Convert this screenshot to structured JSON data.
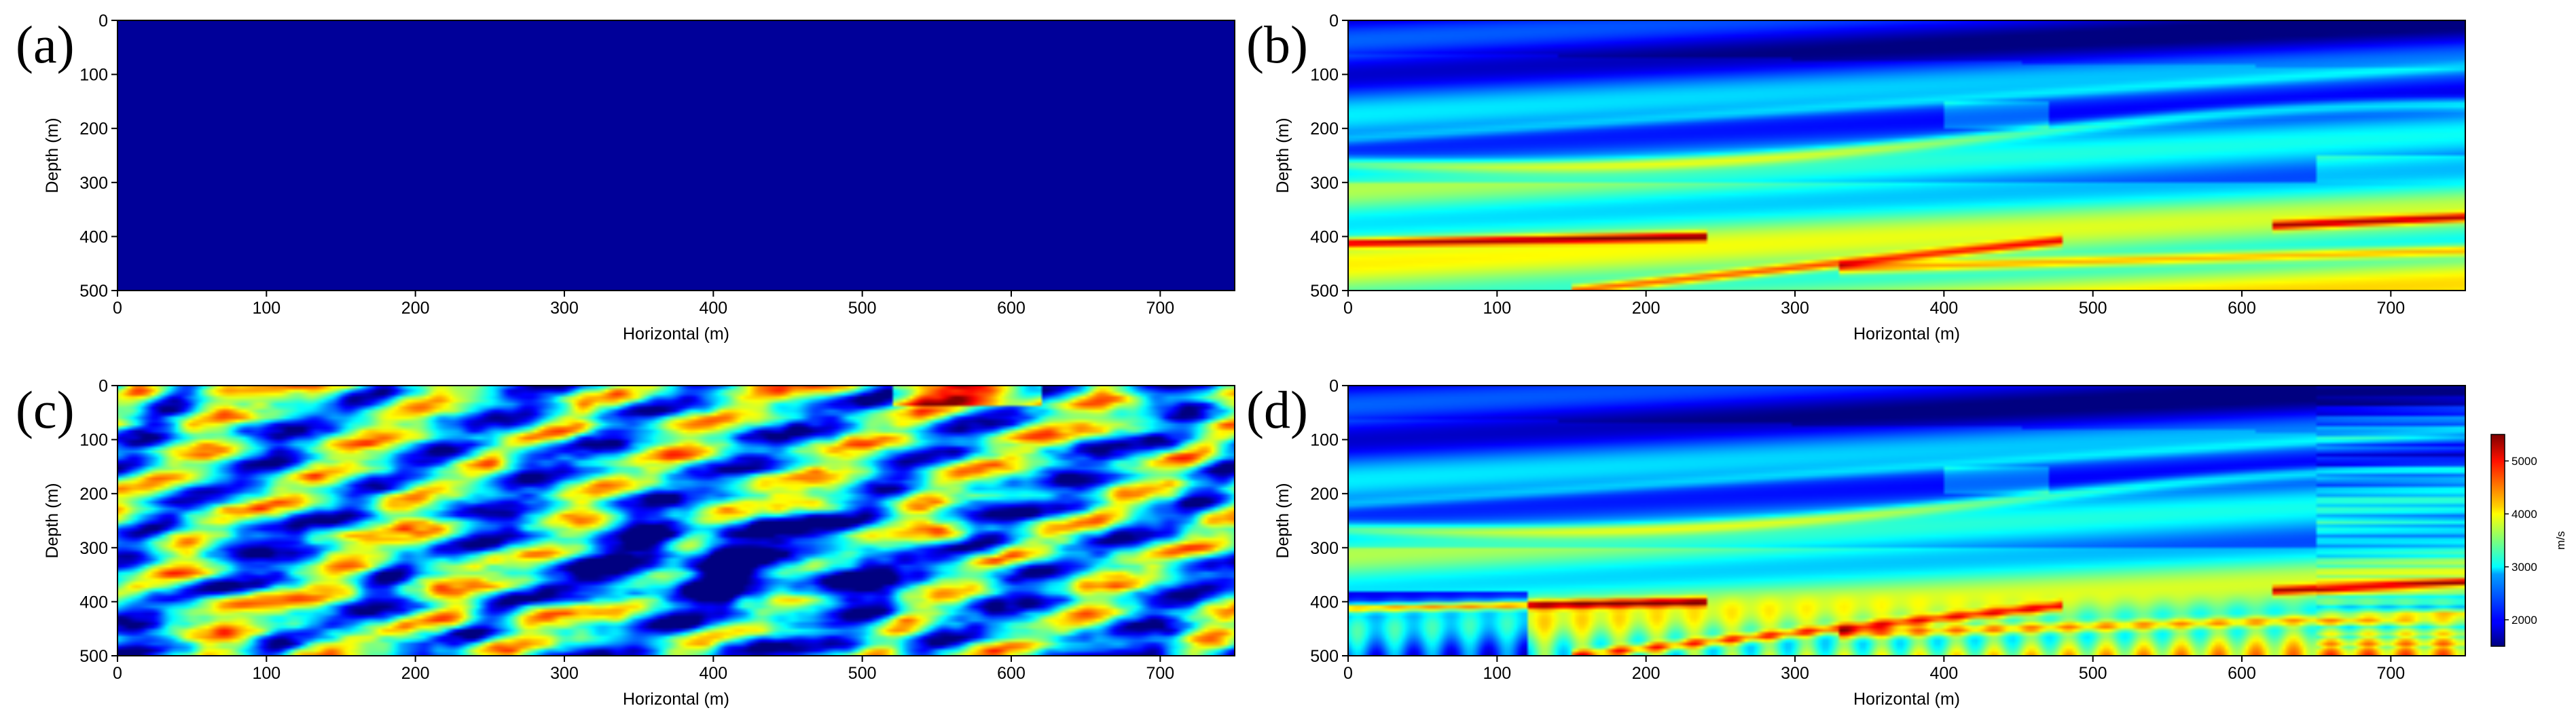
{
  "chart_data": [
    {
      "type": "heatmap",
      "panel_label": "(a)",
      "xlabel": "Horizontal (m)",
      "ylabel": "Depth (m)",
      "xlim": [
        0,
        750
      ],
      "ylim": [
        500,
        0
      ],
      "xticks": [
        "0",
        "100",
        "200",
        "300",
        "400",
        "500",
        "600",
        "700"
      ],
      "yticks": [
        "0",
        "100",
        "200",
        "300",
        "400",
        "500"
      ],
      "pattern": "uniform",
      "uniform_value": 1600
    },
    {
      "type": "heatmap",
      "panel_label": "(b)",
      "xlabel": "Horizontal (m)",
      "ylabel": "Depth (m)",
      "xlim": [
        0,
        750
      ],
      "ylim": [
        500,
        0
      ],
      "xticks": [
        "0",
        "100",
        "200",
        "300",
        "400",
        "500",
        "600",
        "700"
      ],
      "yticks": [
        "0",
        "100",
        "200",
        "300",
        "400",
        "500"
      ],
      "pattern": "layered"
    },
    {
      "type": "heatmap",
      "panel_label": "(c)",
      "xlabel": "Horizontal (m)",
      "ylabel": "Depth (m)",
      "xlim": [
        0,
        750
      ],
      "ylim": [
        500,
        0
      ],
      "xticks": [
        "0",
        "100",
        "200",
        "300",
        "400",
        "500",
        "600",
        "700"
      ],
      "yticks": [
        "0",
        "100",
        "200",
        "300",
        "400",
        "500"
      ],
      "pattern": "noisy"
    },
    {
      "type": "heatmap",
      "panel_label": "(d)",
      "xlabel": "Horizontal (m)",
      "ylabel": "Depth (m)",
      "xlim": [
        0,
        750
      ],
      "ylim": [
        500,
        0
      ],
      "xticks": [
        "0",
        "100",
        "200",
        "300",
        "400",
        "500",
        "600",
        "700"
      ],
      "yticks": [
        "0",
        "100",
        "200",
        "300",
        "400",
        "500"
      ],
      "pattern": "layered-inverted"
    }
  ],
  "colorbar": {
    "label": "m/s",
    "range": [
      1500,
      5500
    ],
    "ticks": [
      "2000",
      "3000",
      "4000",
      "5000"
    ],
    "colormap": "jet"
  }
}
